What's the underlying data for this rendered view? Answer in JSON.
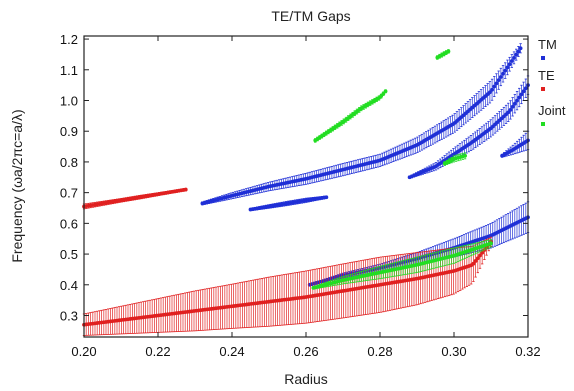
{
  "chart_data": {
    "type": "scatter",
    "title": "TE/TM Gaps",
    "xlabel": "Radius",
    "ylabel": "Frequency (ωa/2πc=a/λ)",
    "xlim": [
      0.2,
      0.32
    ],
    "ylim": [
      0.23,
      1.21
    ],
    "xticks": [
      "0.20",
      "0.22",
      "0.24",
      "0.26",
      "0.28",
      "0.30",
      "0.32"
    ],
    "yticks": [
      "0.3",
      "0.4",
      "0.5",
      "0.6",
      "0.7",
      "0.8",
      "0.9",
      "1.0",
      "1.1",
      "1.2"
    ],
    "grid": false,
    "legend_position": "right",
    "series": [
      {
        "name": "TM",
        "color": "#1f2fd6",
        "bands": [
          {
            "x": [
              0.232,
              0.24,
              0.25,
              0.26,
              0.27,
              0.28,
              0.29,
              0.3,
              0.31,
              0.318
            ],
            "y": [
              0.665,
              0.69,
              0.72,
              0.745,
              0.775,
              0.805,
              0.855,
              0.925,
              1.03,
              1.17
            ],
            "halfwidth": [
              0.005,
              0.01,
              0.014,
              0.018,
              0.02,
              0.02,
              0.025,
              0.03,
              0.035,
              0.015
            ]
          },
          {
            "x": [
              0.245,
              0.25,
              0.255,
              0.26,
              0.2655
            ],
            "y": [
              0.645,
              0.655,
              0.665,
              0.675,
              0.685
            ],
            "halfwidth": [
              0.004,
              0.006,
              0.007,
              0.007,
              0.004
            ]
          },
          {
            "x": [
              0.288,
              0.295,
              0.3,
              0.305,
              0.31,
              0.315,
              0.32
            ],
            "y": [
              0.75,
              0.785,
              0.825,
              0.865,
              0.91,
              0.965,
              1.05
            ],
            "halfwidth": [
              0.004,
              0.012,
              0.02,
              0.025,
              0.028,
              0.03,
              0.03
            ]
          },
          {
            "x": [
              0.313,
              0.316,
              0.32
            ],
            "y": [
              0.82,
              0.84,
              0.87
            ],
            "halfwidth": [
              0.005,
              0.015,
              0.03
            ]
          },
          {
            "x": [
              0.261,
              0.27,
              0.28,
              0.29,
              0.3,
              0.31,
              0.32
            ],
            "y": [
              0.4,
              0.43,
              0.455,
              0.485,
              0.52,
              0.56,
              0.62
            ],
            "halfwidth": [
              0.002,
              0.008,
              0.012,
              0.02,
              0.03,
              0.04,
              0.05
            ]
          }
        ]
      },
      {
        "name": "TE",
        "color": "#e02020",
        "bands": [
          {
            "x": [
              0.2,
              0.205,
              0.21,
              0.215,
              0.22,
              0.2275
            ],
            "y": [
              0.655,
              0.665,
              0.675,
              0.685,
              0.695,
              0.71
            ],
            "halfwidth": [
              0.008,
              0.007,
              0.006,
              0.006,
              0.005,
              0.004
            ]
          },
          {
            "x": [
              0.2,
              0.21,
              0.22,
              0.23,
              0.24,
              0.25,
              0.26,
              0.27,
              0.28,
              0.29,
              0.3,
              0.305,
              0.31
            ],
            "y": [
              0.27,
              0.285,
              0.3,
              0.315,
              0.33,
              0.345,
              0.36,
              0.38,
              0.4,
              0.42,
              0.445,
              0.465,
              0.54
            ],
            "halfwidth": [
              0.035,
              0.045,
              0.055,
              0.065,
              0.072,
              0.08,
              0.085,
              0.088,
              0.09,
              0.085,
              0.075,
              0.06,
              0.015
            ]
          }
        ]
      },
      {
        "name": "Joint",
        "color": "#22dd22",
        "bands": [
          {
            "x": [
              0.2625,
              0.27,
              0.275,
              0.28,
              0.2815
            ],
            "y": [
              0.87,
              0.93,
              0.975,
              1.01,
              1.03
            ],
            "halfwidth": [
              0.006,
              0.008,
              0.008,
              0.007,
              0.005
            ]
          },
          {
            "x": [
              0.2955,
              0.297,
              0.2985
            ],
            "y": [
              1.14,
              1.15,
              1.16
            ],
            "halfwidth": [
              0.006,
              0.007,
              0.006
            ]
          },
          {
            "x": [
              0.2975,
              0.3,
              0.303
            ],
            "y": [
              0.795,
              0.81,
              0.82
            ],
            "halfwidth": [
              0.006,
              0.01,
              0.01
            ]
          },
          {
            "x": [
              0.262,
              0.27,
              0.28,
              0.29,
              0.3,
              0.31
            ],
            "y": [
              0.39,
              0.415,
              0.44,
              0.465,
              0.495,
              0.535
            ],
            "halfwidth": [
              0.004,
              0.012,
              0.02,
              0.025,
              0.025,
              0.012
            ]
          }
        ]
      }
    ]
  }
}
